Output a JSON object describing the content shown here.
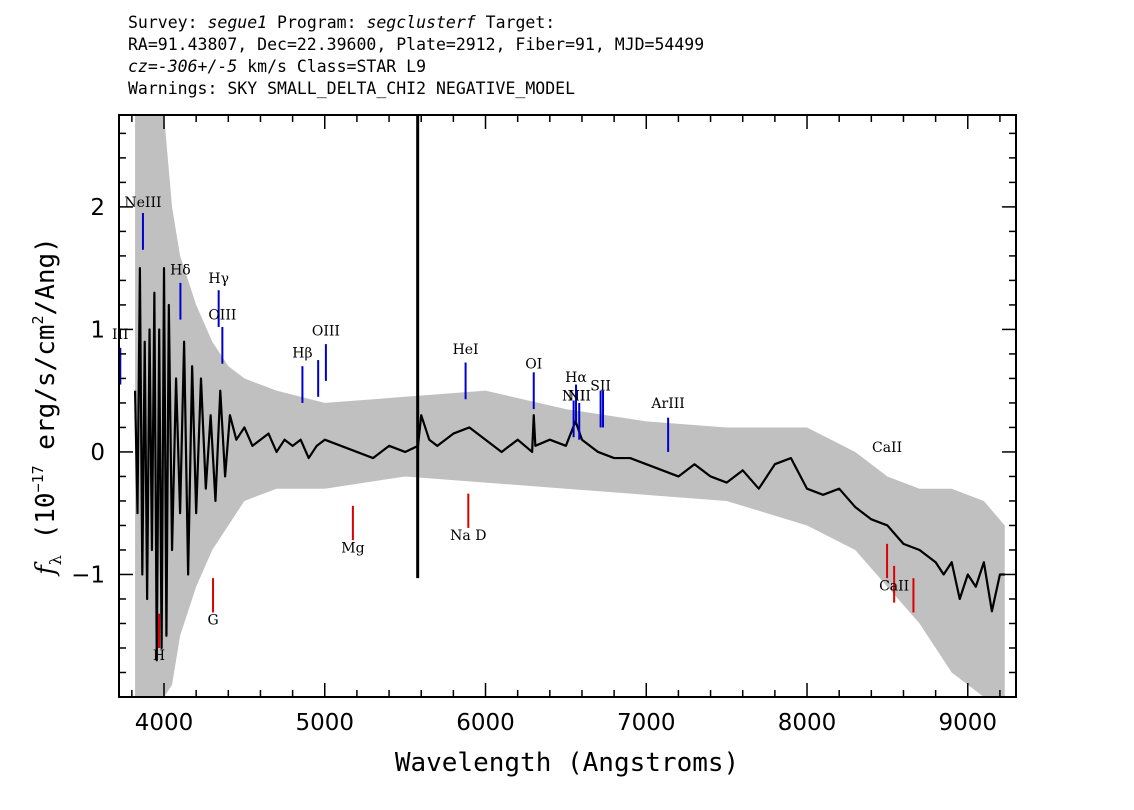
{
  "header": {
    "line1_prefix": "Survey: ",
    "survey": "segue1",
    "line1_mid": " Program: ",
    "program": "segclusterf",
    "line1_suffix": " Target:",
    "line2": "RA=91.43807, Dec=22.39600, Plate=2912, Fiber=91, MJD=54499",
    "line3_cz": "cz=-306+/-5",
    "line3_rest": " km/s Class=STAR L9",
    "line4": "Warnings: SKY SMALL_DELTA_CHI2 NEGATIVE_MODEL"
  },
  "chart_data": {
    "type": "line",
    "title": "",
    "xlabel": "Wavelength (Angstroms)",
    "ylabel_symbol": "f",
    "ylabel_subscript": "λ",
    "ylabel_open": " (10",
    "ylabel_exp1": "−17",
    "ylabel_mid": " erg/s/cm",
    "ylabel_exp2": "2",
    "ylabel_close": "/Ang)",
    "xlim": [
      3720,
      9300
    ],
    "ylim": [
      -2.0,
      2.75
    ],
    "xticks": [
      4000,
      5000,
      6000,
      7000,
      8000,
      9000
    ],
    "xtick_labels": [
      "4000",
      "5000",
      "6000",
      "7000",
      "8000",
      "9000"
    ],
    "yticks": [
      2,
      1,
      0,
      -1
    ],
    "ytick_labels": [
      "2",
      "1",
      "0",
      "−1"
    ],
    "series": [
      {
        "role": "flux",
        "color": "#000000",
        "x": [
          3820,
          3835,
          3850,
          3865,
          3880,
          3895,
          3910,
          3925,
          3940,
          3955,
          3970,
          3985,
          4000,
          4015,
          4030,
          4050,
          4075,
          4100,
          4125,
          4150,
          4175,
          4200,
          4230,
          4260,
          4290,
          4320,
          4350,
          4380,
          4410,
          4450,
          4500,
          4550,
          4600,
          4650,
          4700,
          4750,
          4800,
          4850,
          4900,
          4950,
          5000,
          5100,
          5200,
          5300,
          5400,
          5500,
          5580,
          5600,
          5650,
          5700,
          5800,
          5900,
          6000,
          6100,
          6200,
          6290,
          6300,
          6310,
          6400,
          6500,
          6560,
          6600,
          6700,
          6800,
          6900,
          7000,
          7100,
          7200,
          7300,
          7400,
          7500,
          7600,
          7700,
          7800,
          7900,
          8000,
          8100,
          8200,
          8300,
          8400,
          8500,
          8600,
          8700,
          8800,
          8850,
          8900,
          8950,
          9000,
          9050,
          9100,
          9150,
          9200,
          9230
        ],
        "y": [
          0.5,
          -0.5,
          1.5,
          -1.0,
          0.9,
          -1.2,
          1.0,
          -0.8,
          1.3,
          -1.7,
          1.0,
          -1.6,
          1.5,
          -1.5,
          1.2,
          -0.8,
          0.6,
          -0.5,
          0.9,
          -1.0,
          0.7,
          -0.5,
          0.6,
          -0.3,
          0.3,
          -0.4,
          0.5,
          -0.2,
          0.3,
          0.1,
          0.2,
          0.05,
          0.1,
          0.15,
          0.0,
          0.1,
          0.05,
          0.1,
          -0.05,
          0.05,
          0.1,
          0.05,
          0.0,
          -0.05,
          0.05,
          0.0,
          0.05,
          0.3,
          0.1,
          0.05,
          0.15,
          0.2,
          0.1,
          0.0,
          0.1,
          0.0,
          0.3,
          0.05,
          0.1,
          0.05,
          0.25,
          0.1,
          0.0,
          -0.05,
          -0.05,
          -0.1,
          -0.15,
          -0.2,
          -0.1,
          -0.2,
          -0.25,
          -0.15,
          -0.3,
          -0.1,
          -0.05,
          -0.3,
          -0.35,
          -0.3,
          -0.45,
          -0.55,
          -0.6,
          -0.75,
          -0.8,
          -0.9,
          -1.0,
          -0.9,
          -1.2,
          -1.0,
          -1.1,
          -0.9,
          -1.3,
          -1.0,
          -1.0
        ]
      },
      {
        "role": "noise",
        "color": "#c0c0c0",
        "x": [
          3820,
          3860,
          3900,
          3950,
          4000,
          4050,
          4100,
          4200,
          4300,
          4400,
          4500,
          4700,
          5000,
          5500,
          6000,
          6500,
          7000,
          7500,
          8000,
          8300,
          8500,
          8700,
          8900,
          9100,
          9230
        ],
        "upper": [
          2.75,
          2.75,
          2.75,
          2.75,
          2.75,
          2.0,
          1.6,
          1.2,
          0.9,
          0.7,
          0.6,
          0.5,
          0.4,
          0.45,
          0.5,
          0.35,
          0.25,
          0.2,
          0.2,
          0.0,
          -0.2,
          -0.3,
          -0.3,
          -0.4,
          -0.6
        ],
        "lower": [
          -2.0,
          -2.0,
          -2.0,
          -2.0,
          -2.0,
          -1.9,
          -1.5,
          -1.1,
          -0.8,
          -0.6,
          -0.4,
          -0.3,
          -0.3,
          -0.2,
          -0.25,
          -0.3,
          -0.35,
          -0.4,
          -0.6,
          -0.8,
          -1.1,
          -1.4,
          -1.8,
          -2.0,
          -2.0
        ]
      },
      {
        "role": "sky spike",
        "color": "#000000",
        "x": [
          5578,
          5578
        ],
        "y": [
          2.75,
          -1.03
        ]
      }
    ],
    "lines": [
      {
        "label": "III",
        "x": 3728,
        "y1": 0.55,
        "y2": 0.85,
        "label_y": 0.92,
        "color": "#0000cc"
      },
      {
        "label": "NeIII",
        "x": 3869,
        "y1": 1.65,
        "y2": 1.95,
        "label_y": 2.0,
        "color": "#0000cc"
      },
      {
        "label": "Hδ",
        "x": 4102,
        "y1": 1.08,
        "y2": 1.38,
        "label_y": 1.45,
        "color": "#0000cc"
      },
      {
        "label": "Hγ",
        "x": 4340,
        "y1": 1.02,
        "y2": 1.32,
        "label_y": 1.38,
        "color": "#0000cc"
      },
      {
        "label": "OIII",
        "x": 4363,
        "y1": 0.72,
        "y2": 1.02,
        "label_y": 1.08,
        "color": "#0000cc"
      },
      {
        "label": "Hβ",
        "x": 4861,
        "y1": 0.4,
        "y2": 0.7,
        "label_y": 0.77,
        "color": "#0000cc"
      },
      {
        "label": "",
        "x": 4959,
        "y1": 0.45,
        "y2": 0.75,
        "label_y": 0,
        "color": "#0000cc"
      },
      {
        "label": "OIII",
        "x": 5007,
        "y1": 0.58,
        "y2": 0.88,
        "label_y": 0.95,
        "color": "#0000cc"
      },
      {
        "label": "HeI",
        "x": 5876,
        "y1": 0.43,
        "y2": 0.73,
        "label_y": 0.8,
        "color": "#0000cc"
      },
      {
        "label": "OI",
        "x": 6300,
        "y1": 0.35,
        "y2": 0.65,
        "label_y": 0.68,
        "color": "#0000cc"
      },
      {
        "label": "NII",
        "x": 6548,
        "y1": 0.12,
        "y2": 0.42,
        "label_y": 0.42,
        "color": "#0000cc"
      },
      {
        "label": "Hα",
        "x": 6563,
        "y1": 0.25,
        "y2": 0.55,
        "label_y": 0.57,
        "color": "#0000cc"
      },
      {
        "label": "NII",
        "x": 6583,
        "y1": 0.1,
        "y2": 0.4,
        "label_y": 0.42,
        "color": "#0000cc"
      },
      {
        "label": "SII",
        "x": 6716,
        "y1": 0.2,
        "y2": 0.5,
        "label_y": 0.5,
        "color": "#0000cc"
      },
      {
        "label": "",
        "x": 6731,
        "y1": 0.2,
        "y2": 0.5,
        "label_y": 0,
        "color": "#0000cc"
      },
      {
        "label": "ArIII",
        "x": 7136,
        "y1": 0.0,
        "y2": 0.28,
        "label_y": 0.36,
        "color": "#0000cc"
      },
      {
        "label": "H",
        "x": 3969,
        "y1": -1.32,
        "y2": -1.6,
        "label_y": -1.7,
        "color": "#dd0000"
      },
      {
        "label": "G",
        "x": 4305,
        "y1": -1.03,
        "y2": -1.31,
        "label_y": -1.41,
        "color": "#dd0000"
      },
      {
        "label": "Mg",
        "x": 5175,
        "y1": -0.44,
        "y2": -0.72,
        "label_y": -0.82,
        "color": "#dd0000"
      },
      {
        "label": "Na D",
        "x": 5893,
        "y1": -0.34,
        "y2": -0.62,
        "label_y": -0.72,
        "color": "#dd0000"
      },
      {
        "label": "CaII",
        "x": 8498,
        "y1": -0.75,
        "y2": -1.03,
        "label_y": 0,
        "color": "#dd0000"
      },
      {
        "label": "CaII",
        "x": 8542,
        "y1": -0.93,
        "y2": -1.23,
        "label_y": -1.13,
        "color": "#dd0000"
      },
      {
        "label": "",
        "x": 8662,
        "y1": -1.03,
        "y2": -1.31,
        "label_y": 0,
        "color": "#dd0000"
      }
    ]
  }
}
